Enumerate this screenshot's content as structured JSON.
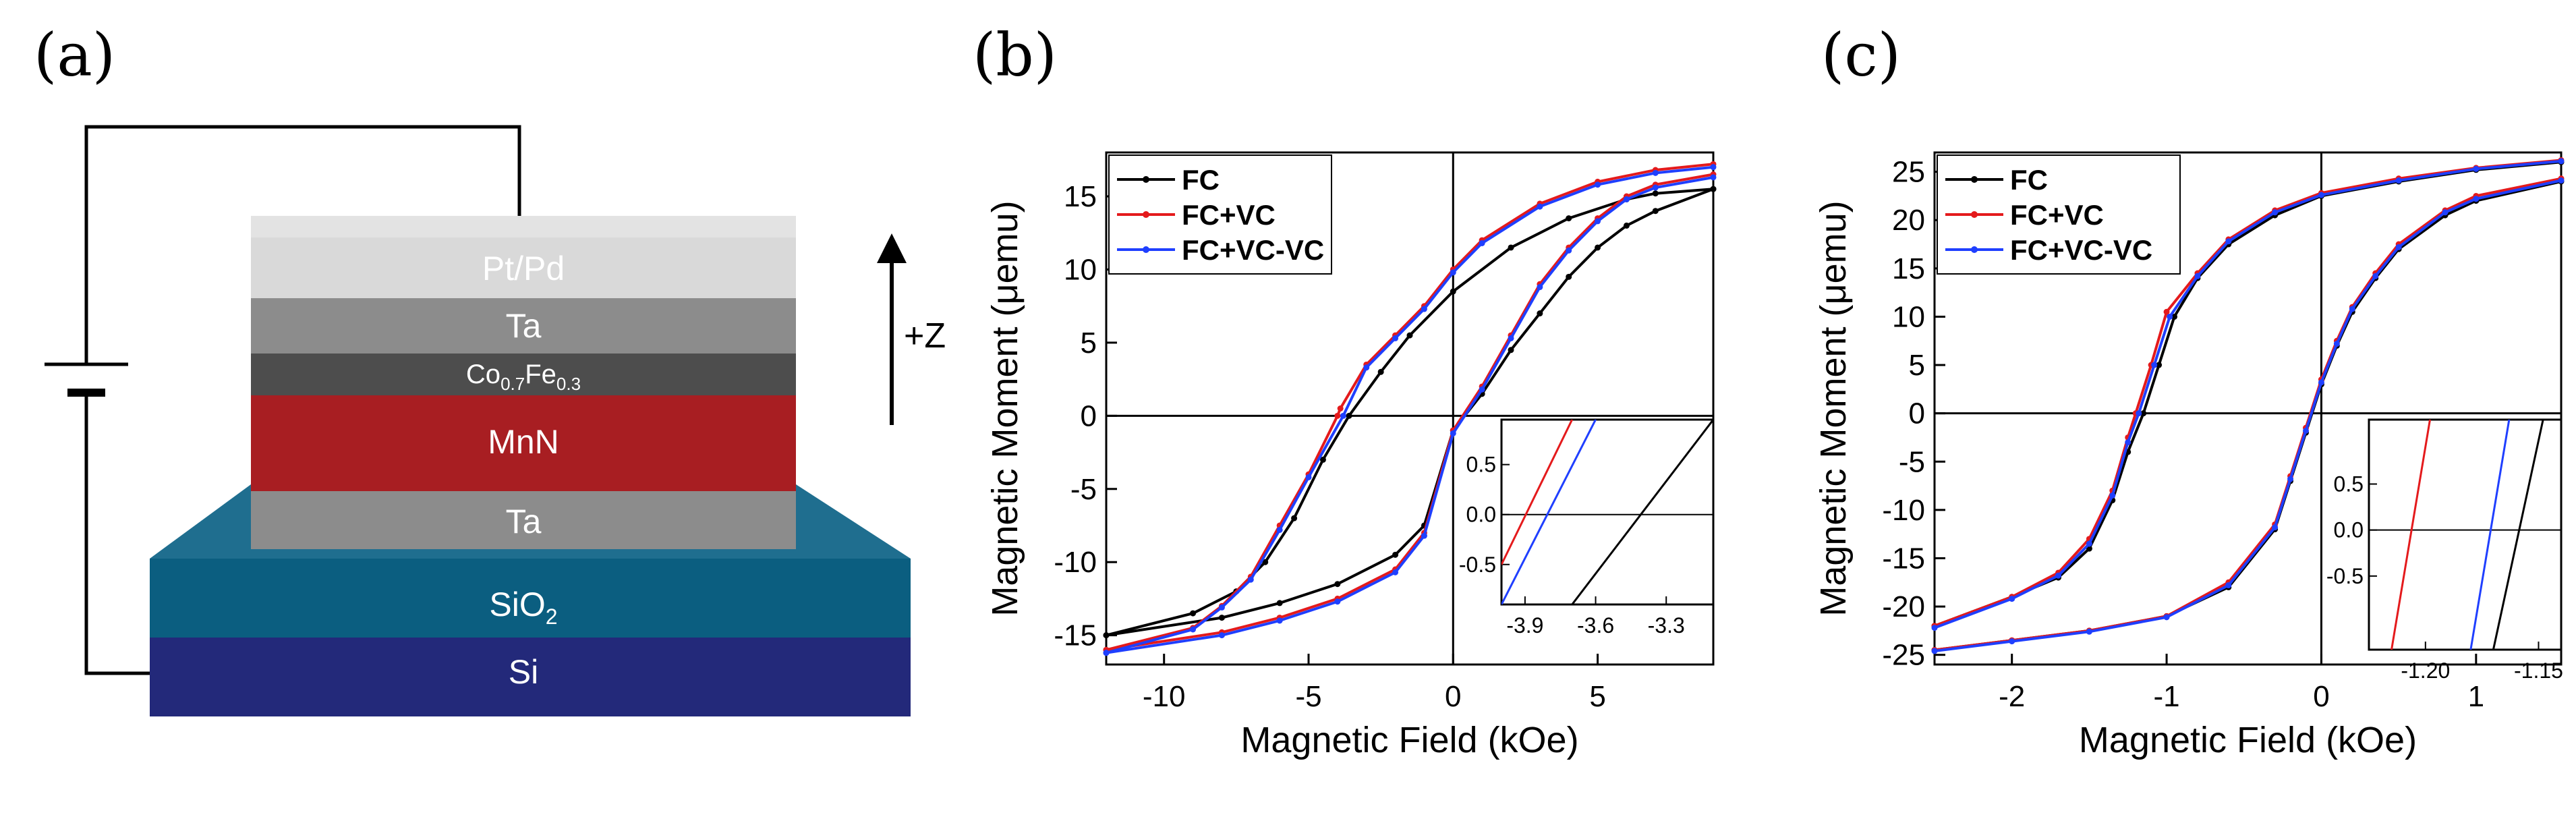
{
  "panels": {
    "a": "(a)",
    "b": "(b)",
    "c": "(c)"
  },
  "stack": {
    "layers": [
      "Pt/Pd",
      "Ta",
      "Co",
      "MnN",
      "Ta",
      "SiO",
      "Si"
    ],
    "cofe": {
      "co": "Co",
      "co_sub": "0.7",
      "fe": "Fe",
      "fe_sub": "0.3"
    },
    "sio2": {
      "base": "SiO",
      "sub": "2"
    },
    "axis_label": "+Z",
    "colors": {
      "ptpd": "#d9d9d9",
      "ta": "#8c8c8c",
      "cofe": "#4d4d4d",
      "mnn": "#a81e22",
      "sio2": "#0b5e80",
      "si": "#23297a"
    }
  },
  "chart_data": [
    {
      "type": "line",
      "title": "",
      "xlabel": "Magnetic Field (kOe)",
      "ylabel": "Magnetic Moment (μemu)",
      "xlim": [
        -12,
        9
      ],
      "ylim": [
        -17,
        18
      ],
      "xticks": [
        -10,
        -5,
        0,
        5
      ],
      "yticks": [
        -15,
        -10,
        -5,
        0,
        5,
        10,
        15
      ],
      "xtick_labels": [
        "-10",
        "-5",
        "0",
        "5"
      ],
      "ytick_labels": [
        "-15",
        "-10",
        "-5",
        "0",
        "5",
        "10",
        "15"
      ],
      "legend": "top-left",
      "series": [
        {
          "name": "FC",
          "color": "#000000",
          "desc_x": [
            -12,
            -9,
            -7.5,
            -6.5,
            -5.5,
            -4.5,
            -3.6,
            -2.5,
            -1.5,
            0,
            2,
            4,
            6,
            7,
            9
          ],
          "desc_y": [
            -15.0,
            -13.5,
            -12.0,
            -10.0,
            -7.0,
            -3.0,
            0.0,
            3.0,
            5.5,
            8.5,
            11.5,
            13.5,
            14.8,
            15.2,
            15.5
          ],
          "asc_x": [
            -12,
            -8,
            -6,
            -4,
            -2,
            -1,
            0,
            1,
            2,
            3,
            4,
            5,
            6,
            7,
            9
          ],
          "asc_y": [
            -15.0,
            -13.8,
            -12.8,
            -11.5,
            -9.5,
            -7.5,
            -1.0,
            1.5,
            4.5,
            7.0,
            9.5,
            11.5,
            13.0,
            14.0,
            15.5
          ]
        },
        {
          "name": "FC+VC",
          "color": "#e41a1c",
          "desc_x": [
            -12,
            -9,
            -8,
            -7,
            -6,
            -5,
            -4,
            -3.9,
            -3,
            -2,
            -1,
            0,
            1,
            3,
            5,
            7,
            9
          ],
          "desc_y": [
            -16.0,
            -14.5,
            -13.0,
            -11.0,
            -7.5,
            -4.0,
            0.0,
            0.5,
            3.5,
            5.5,
            7.5,
            10.0,
            12.0,
            14.5,
            16.0,
            16.8,
            17.2
          ],
          "asc_x": [
            -12,
            -8,
            -6,
            -4,
            -2,
            -1,
            0,
            1,
            2,
            3,
            4,
            5,
            6,
            7,
            9
          ],
          "asc_y": [
            -16.0,
            -14.8,
            -13.8,
            -12.5,
            -10.5,
            -8.0,
            -1.0,
            2.0,
            5.5,
            9.0,
            11.5,
            13.5,
            15.0,
            15.8,
            16.5
          ]
        },
        {
          "name": "FC+VC-VC",
          "color": "#1f3fff",
          "desc_x": [
            -12,
            -9,
            -8,
            -7,
            -6,
            -5,
            -3.8,
            -3,
            -2,
            -1,
            0,
            1,
            3,
            5,
            7,
            9
          ],
          "desc_y": [
            -16.2,
            -14.6,
            -13.1,
            -11.2,
            -7.8,
            -4.2,
            0.0,
            3.3,
            5.3,
            7.3,
            9.8,
            11.8,
            14.3,
            15.8,
            16.6,
            17.0
          ],
          "asc_x": [
            -12,
            -8,
            -6,
            -4,
            -2,
            -1,
            0,
            1,
            2,
            3,
            4,
            5,
            6,
            7,
            9
          ],
          "asc_y": [
            -16.2,
            -15.0,
            -14.0,
            -12.7,
            -10.7,
            -8.2,
            -1.2,
            1.8,
            5.3,
            8.8,
            11.3,
            13.3,
            14.8,
            15.6,
            16.3
          ]
        }
      ],
      "inset": {
        "xlim": [
          -4.0,
          -3.1
        ],
        "ylim": [
          -0.9,
          0.95
        ],
        "xticks": [
          -3.9,
          -3.6,
          -3.3
        ],
        "yticks": [
          -0.5,
          0.0,
          0.5
        ],
        "xtick_labels": [
          "-3.9",
          "-3.6",
          "-3.3"
        ],
        "ytick_labels": [
          "-0.5",
          "0.0",
          "0.5"
        ],
        "lines": [
          {
            "series": "FC+VC",
            "x": [
              -4.0,
              -3.7
            ],
            "y": [
              -0.5,
              0.95
            ]
          },
          {
            "series": "FC+VC-VC",
            "x": [
              -4.0,
              -3.6
            ],
            "y": [
              -0.9,
              0.95
            ]
          },
          {
            "series": "FC",
            "x": [
              -3.7,
              -3.1
            ],
            "y": [
              -0.9,
              0.95
            ]
          }
        ]
      }
    },
    {
      "type": "line",
      "title": "",
      "xlabel": "Magnetic Field (kOe)",
      "ylabel": "Magnetic Moment (μemu)",
      "xlim": [
        -2.5,
        1.55
      ],
      "ylim": [
        -26,
        27
      ],
      "xticks": [
        -2,
        -1,
        0,
        1
      ],
      "yticks": [
        -25,
        -20,
        -15,
        -10,
        -5,
        0,
        5,
        10,
        15,
        20,
        25
      ],
      "xtick_labels": [
        "-2",
        "-1",
        "0",
        "1"
      ],
      "ytick_labels": [
        "-25",
        "-20",
        "-15",
        "-10",
        "-5",
        "0",
        "5",
        "10",
        "15",
        "20",
        "25"
      ],
      "legend": "top-left",
      "series": [
        {
          "name": "FC",
          "color": "#000000",
          "desc_x": [
            -2.5,
            -2.0,
            -1.7,
            -1.5,
            -1.35,
            -1.25,
            -1.15,
            -1.05,
            -0.95,
            -0.8,
            -0.6,
            -0.3,
            0,
            0.5,
            1.0,
            1.55
          ],
          "desc_y": [
            -22.0,
            -19.0,
            -17.0,
            -14.0,
            -9.0,
            -4.0,
            0.0,
            5.0,
            10.0,
            14.0,
            17.5,
            20.5,
            22.5,
            24.0,
            25.2,
            26.0
          ],
          "asc_x": [
            -2.5,
            -2.0,
            -1.5,
            -1.0,
            -0.6,
            -0.3,
            -0.2,
            -0.1,
            0,
            0.1,
            0.2,
            0.35,
            0.5,
            0.8,
            1.0,
            1.55
          ],
          "asc_y": [
            -24.5,
            -23.5,
            -22.5,
            -21.0,
            -18.0,
            -12.0,
            -7.0,
            -2.0,
            3.0,
            7.0,
            10.5,
            14.0,
            17.0,
            20.5,
            22.0,
            24.0
          ]
        },
        {
          "name": "FC+VC",
          "color": "#e41a1c",
          "desc_x": [
            -2.5,
            -2.0,
            -1.7,
            -1.5,
            -1.35,
            -1.25,
            -1.2,
            -1.1,
            -1.0,
            -0.8,
            -0.6,
            -0.3,
            0,
            0.5,
            1.0,
            1.55
          ],
          "desc_y": [
            -22.0,
            -19.0,
            -16.5,
            -13.0,
            -8.0,
            -2.5,
            0.0,
            5.0,
            10.5,
            14.5,
            18.0,
            21.0,
            22.8,
            24.3,
            25.4,
            26.2
          ],
          "asc_x": [
            -2.5,
            -2.0,
            -1.5,
            -1.0,
            -0.6,
            -0.3,
            -0.2,
            -0.1,
            0,
            0.1,
            0.2,
            0.35,
            0.5,
            0.8,
            1.0,
            1.55
          ],
          "asc_y": [
            -24.5,
            -23.5,
            -22.5,
            -21.0,
            -17.5,
            -11.5,
            -6.5,
            -1.5,
            3.5,
            7.5,
            11.0,
            14.5,
            17.5,
            21.0,
            22.5,
            24.3
          ]
        },
        {
          "name": "FC+VC-VC",
          "color": "#1f3fff",
          "desc_x": [
            -2.5,
            -2.0,
            -1.7,
            -1.5,
            -1.35,
            -1.25,
            -1.18,
            -1.08,
            -0.98,
            -0.8,
            -0.6,
            -0.3,
            0,
            0.5,
            1.0,
            1.55
          ],
          "desc_y": [
            -22.2,
            -19.2,
            -16.8,
            -13.5,
            -8.5,
            -3.0,
            0.0,
            5.0,
            10.0,
            14.2,
            17.8,
            20.8,
            22.6,
            24.1,
            25.3,
            26.1
          ],
          "asc_x": [
            -2.5,
            -2.0,
            -1.5,
            -1.0,
            -0.6,
            -0.3,
            -0.2,
            -0.1,
            0,
            0.1,
            0.2,
            0.35,
            0.5,
            0.8,
            1.0,
            1.55
          ],
          "asc_y": [
            -24.6,
            -23.6,
            -22.6,
            -21.1,
            -17.8,
            -11.8,
            -6.8,
            -1.8,
            3.2,
            7.2,
            10.8,
            14.2,
            17.2,
            20.8,
            22.2,
            24.1
          ]
        }
      ],
      "inset": {
        "xlim": [
          -1.225,
          -1.14
        ],
        "ylim": [
          -1.3,
          1.2
        ],
        "xticks": [
          -1.2,
          -1.15
        ],
        "yticks": [
          -0.5,
          0.0,
          0.5
        ],
        "xtick_labels": [
          "-1.20",
          "-1.15"
        ],
        "ytick_labels": [
          "-0.5",
          "0.0",
          "0.5"
        ],
        "lines": [
          {
            "series": "FC+VC",
            "x": [
              -1.215,
              -1.198
            ],
            "y": [
              -1.3,
              1.2
            ]
          },
          {
            "series": "FC+VC-VC",
            "x": [
              -1.18,
              -1.163
            ],
            "y": [
              -1.3,
              1.2
            ]
          },
          {
            "series": "FC",
            "x": [
              -1.17,
              -1.148
            ],
            "y": [
              -1.3,
              1.2
            ]
          }
        ]
      }
    }
  ]
}
